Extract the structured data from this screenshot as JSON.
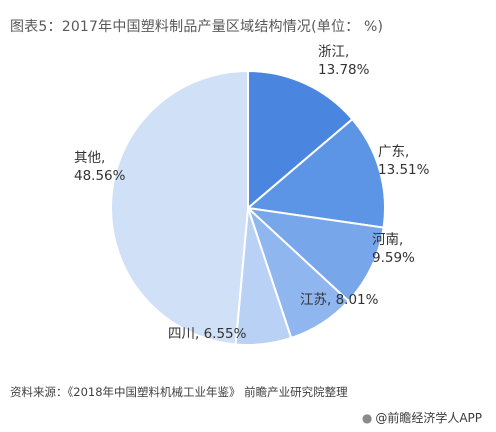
{
  "chart_data": {
    "type": "pie",
    "title": "图表5：2017年中国塑料制品产量区域结构情况(单位：  %)",
    "slices": [
      {
        "label": "浙江",
        "value": 13.78,
        "display": "13.78%",
        "color": "#4a86e0"
      },
      {
        "label": "广东",
        "value": 13.51,
        "display": "13.51%",
        "color": "#5d95e6"
      },
      {
        "label": "河南",
        "value": 9.59,
        "display": "9.59%",
        "color": "#77a6ea"
      },
      {
        "label": "江苏",
        "value": 8.01,
        "display": "8.01%",
        "color": "#8fb6ee"
      },
      {
        "label": "四川",
        "value": 6.55,
        "display": "6.55%",
        "color": "#b9d1f4"
      },
      {
        "label": "其他",
        "value": 48.56,
        "display": "48.56%",
        "color": "#cfe0f7"
      }
    ],
    "start_angle_deg": 0,
    "direction": "clockwise"
  },
  "source": "资料来源：《2018年中国塑料机械工业年鉴》 前瞻产业研究院整理",
  "watermark": "@前瞻经济学人APP"
}
